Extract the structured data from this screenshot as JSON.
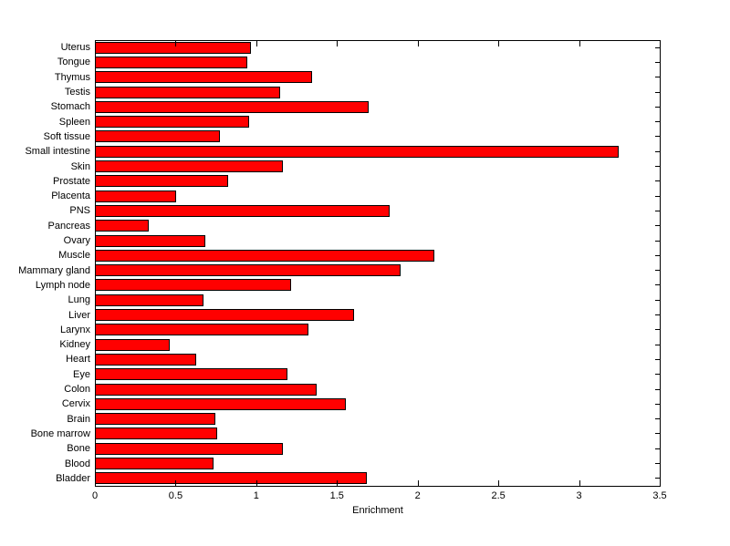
{
  "chart_data": {
    "type": "bar",
    "orientation": "horizontal",
    "xlabel": "Enrichment",
    "categories": [
      "Uterus",
      "Tongue",
      "Thymus",
      "Testis",
      "Stomach",
      "Spleen",
      "Soft tissue",
      "Small intestine",
      "Skin",
      "Prostate",
      "Placenta",
      "PNS",
      "Pancreas",
      "Ovary",
      "Muscle",
      "Mammary gland",
      "Lymph node",
      "Lung",
      "Liver",
      "Larynx",
      "Kidney",
      "Heart",
      "Eye",
      "Colon",
      "Cervix",
      "Brain",
      "Bone marrow",
      "Bone",
      "Blood",
      "Bladder"
    ],
    "values": [
      0.96,
      0.94,
      1.34,
      1.14,
      1.69,
      0.95,
      0.77,
      3.24,
      1.16,
      0.82,
      0.5,
      1.82,
      0.33,
      0.68,
      2.1,
      1.89,
      1.21,
      0.67,
      1.6,
      1.32,
      0.46,
      0.62,
      1.19,
      1.37,
      1.55,
      0.74,
      0.75,
      1.16,
      0.73,
      1.68
    ],
    "xlim": [
      0,
      3.5
    ],
    "xticks": [
      0,
      0.5,
      1,
      1.5,
      2,
      2.5,
      3,
      3.5
    ],
    "xtick_labels": [
      "0",
      "0.5",
      "1",
      "1.5",
      "2",
      "2.5",
      "3",
      "3.5"
    ],
    "bar_color": "#ff0000",
    "bar_edge_color": "#000000",
    "axis_color": "#000000",
    "background_color": "#ffffff",
    "grid": false,
    "legend": null,
    "title": ""
  }
}
